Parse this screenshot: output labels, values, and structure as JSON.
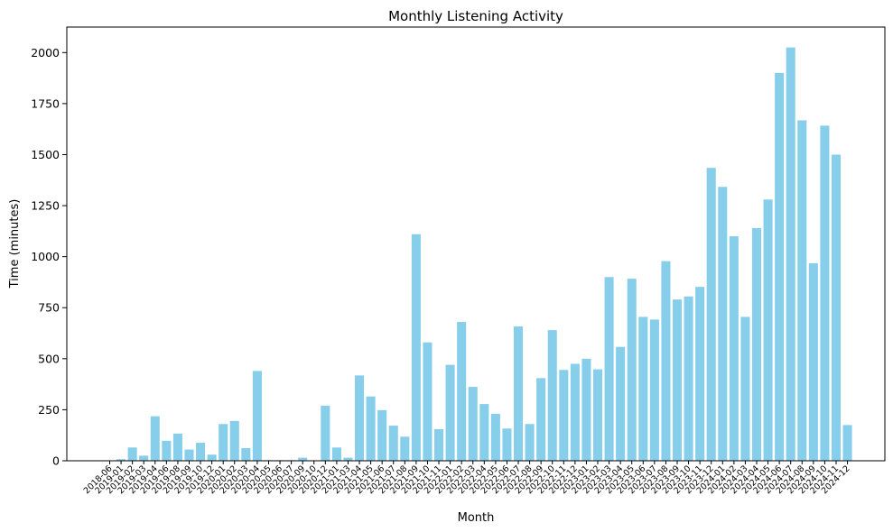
{
  "chart_data": {
    "type": "bar",
    "title": "Monthly Listening Activity",
    "xlabel": "Month",
    "ylabel": "Time (minutes)",
    "ylim": [
      0,
      2125
    ],
    "yticks": [
      0,
      250,
      500,
      750,
      1000,
      1250,
      1500,
      1750,
      2000
    ],
    "grid": false,
    "bar_color": "#87ceeb",
    "categories": [
      "2018-06",
      "2019-01",
      "2019-02",
      "2019-03",
      "2019-04",
      "2019-06",
      "2019-08",
      "2019-09",
      "2019-10",
      "2019-12",
      "2020-01",
      "2020-02",
      "2020-03",
      "2020-04",
      "2020-05",
      "2020-06",
      "2020-07",
      "2020-09",
      "2020-10",
      "2020-12",
      "2021-01",
      "2021-03",
      "2021-04",
      "2021-05",
      "2021-06",
      "2021-07",
      "2021-08",
      "2021-09",
      "2021-10",
      "2021-11",
      "2022-01",
      "2022-02",
      "2022-03",
      "2022-04",
      "2022-05",
      "2022-06",
      "2022-07",
      "2022-08",
      "2022-09",
      "2022-10",
      "2022-11",
      "2022-12",
      "2023-01",
      "2023-02",
      "2023-03",
      "2023-04",
      "2023-05",
      "2023-06",
      "2023-07",
      "2023-08",
      "2023-09",
      "2023-10",
      "2023-11",
      "2023-12",
      "2024-01",
      "2024-02",
      "2024-03",
      "2024-04",
      "2024-05",
      "2024-06",
      "2024-07",
      "2024-08",
      "2024-09",
      "2024-10",
      "2024-11",
      "2024-12"
    ],
    "values": [
      0,
      8,
      65,
      25,
      218,
      98,
      133,
      55,
      88,
      30,
      180,
      195,
      62,
      440,
      3,
      3,
      3,
      15,
      0,
      270,
      65,
      15,
      418,
      315,
      248,
      172,
      118,
      1110,
      580,
      155,
      470,
      680,
      362,
      278,
      230,
      158,
      658,
      180,
      405,
      640,
      445,
      475,
      500,
      448,
      900,
      558,
      892,
      705,
      692,
      978,
      790,
      805,
      852,
      1435,
      1342,
      1100,
      705,
      1140,
      1280,
      1900,
      2025,
      1668,
      968,
      1642,
      1500,
      175
    ]
  }
}
